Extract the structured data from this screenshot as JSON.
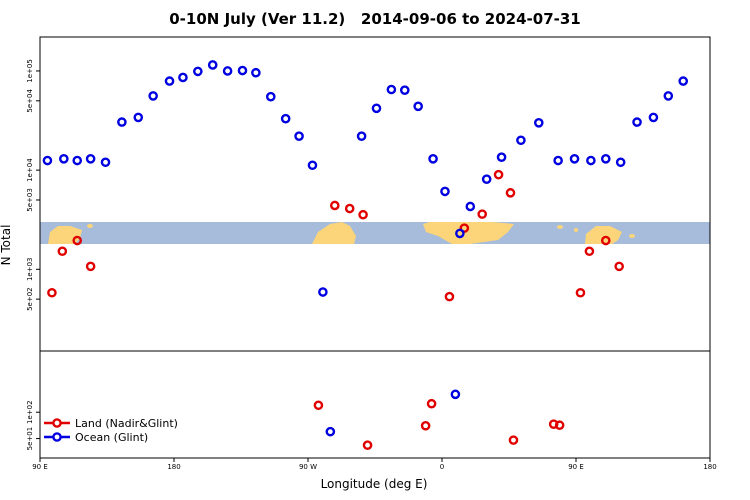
{
  "chart_data": {
    "type": "scatter",
    "title": "0-10N July (Ver 11.2)   2014-09-06 to 2024-07-31",
    "xlabel": "Longitude (deg E)",
    "ylabel": "N Total",
    "x_ticks": [
      {
        "lon": 90,
        "label": "90 E"
      },
      {
        "lon": 180,
        "label": "180"
      },
      {
        "lon": 270,
        "label": "90 W"
      },
      {
        "lon": 360,
        "label": "0"
      },
      {
        "lon": 450,
        "label": "90 E"
      },
      {
        "lon": 540,
        "label": "180"
      }
    ],
    "xlim": [
      90,
      540
    ],
    "upper_panel": {
      "scale": "log",
      "ylim": [
        150,
        220000
      ],
      "y_ticks": [
        {
          "value": 100000,
          "label": "1e+05"
        },
        {
          "value": 50000,
          "label": "5e+04"
        },
        {
          "value": 10000,
          "label": "1e+04"
        },
        {
          "value": 5000,
          "label": "5e+03"
        },
        {
          "value": 1000,
          "label": "1e+03"
        },
        {
          "value": 500,
          "label": "5e+02"
        }
      ]
    },
    "lower_panel": {
      "scale": "log",
      "ylim": [
        30,
        500
      ],
      "y_ticks": [
        {
          "value": 100,
          "label": "1e+02"
        },
        {
          "value": 50,
          "label": "5e+01"
        }
      ]
    },
    "map_band": {
      "ocean_color": "#a7bcdb",
      "land_color": "#fcd57a"
    },
    "series": [
      {
        "name": "Land (Nadir&Glint)",
        "color": "#e00000",
        "upper": [
          [
            98,
            580
          ],
          [
            105,
            1520
          ],
          [
            115,
            1950
          ],
          [
            124,
            1070
          ],
          [
            288,
            4400
          ],
          [
            298,
            4100
          ],
          [
            307,
            3550
          ],
          [
            365,
            530
          ],
          [
            375,
            2600
          ],
          [
            387,
            3600
          ],
          [
            398,
            9000
          ],
          [
            406,
            5900
          ],
          [
            453,
            580
          ],
          [
            459,
            1520
          ],
          [
            470,
            1950
          ],
          [
            479,
            1070
          ]
        ],
        "lower": [
          [
            277,
            120
          ],
          [
            310,
            42
          ],
          [
            349,
            70
          ],
          [
            353,
            125
          ],
          [
            408,
            48
          ],
          [
            435,
            73
          ],
          [
            439,
            71
          ]
        ]
      },
      {
        "name": "Ocean (Glint)",
        "color": "#0000e0",
        "upper": [
          [
            95,
            12500
          ],
          [
            106,
            13000
          ],
          [
            115,
            12500
          ],
          [
            124,
            13000
          ],
          [
            134,
            12000
          ],
          [
            145,
            30500
          ],
          [
            156,
            34000
          ],
          [
            166,
            56000
          ],
          [
            177,
            79000
          ],
          [
            186,
            86000
          ],
          [
            196,
            99000
          ],
          [
            206,
            115000
          ],
          [
            216,
            100000
          ],
          [
            226,
            101000
          ],
          [
            235,
            96000
          ],
          [
            245,
            55000
          ],
          [
            255,
            33000
          ],
          [
            264,
            22000
          ],
          [
            273,
            11200
          ],
          [
            280,
            590
          ],
          [
            306,
            22000
          ],
          [
            316,
            42000
          ],
          [
            326,
            65000
          ],
          [
            335,
            64000
          ],
          [
            344,
            44000
          ],
          [
            354,
            13000
          ],
          [
            362,
            6100
          ],
          [
            372,
            2300
          ],
          [
            379,
            4300
          ],
          [
            390,
            8100
          ],
          [
            400,
            13500
          ],
          [
            413,
            20000
          ],
          [
            425,
            30000
          ],
          [
            438,
            12500
          ],
          [
            449,
            13000
          ],
          [
            460,
            12500
          ],
          [
            470,
            13000
          ],
          [
            480,
            12000
          ],
          [
            491,
            30500
          ],
          [
            502,
            34000
          ],
          [
            512,
            56000
          ],
          [
            522,
            79000
          ]
        ],
        "lower": [
          [
            285,
            60
          ],
          [
            369,
            160
          ]
        ]
      }
    ],
    "legend": {
      "placement": "bottom-left"
    }
  }
}
